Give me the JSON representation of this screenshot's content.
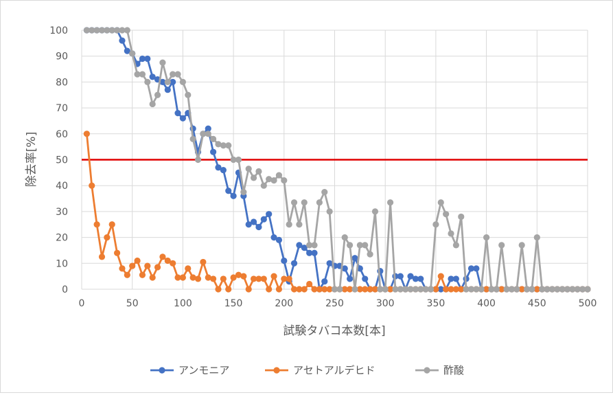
{
  "chart_data": {
    "type": "line",
    "title": "",
    "xlabel": "試験タバコ本数[本]",
    "ylabel": "除去率[%]",
    "xlim": [
      0,
      500
    ],
    "ylim": [
      0,
      100
    ],
    "x_ticks": [
      0,
      50,
      100,
      150,
      200,
      250,
      300,
      350,
      400,
      450,
      500
    ],
    "y_ticks": [
      0,
      10,
      20,
      30,
      40,
      50,
      60,
      70,
      80,
      90,
      100
    ],
    "grid": true,
    "legend_position": "bottom",
    "threshold": {
      "y": 50,
      "color": "#e00000"
    },
    "x": [
      5,
      10,
      15,
      20,
      25,
      30,
      35,
      40,
      45,
      50,
      55,
      60,
      65,
      70,
      75,
      80,
      85,
      90,
      95,
      100,
      105,
      110,
      115,
      120,
      125,
      130,
      135,
      140,
      145,
      150,
      155,
      160,
      165,
      170,
      175,
      180,
      185,
      190,
      195,
      200,
      205,
      210,
      215,
      220,
      225,
      230,
      235,
      240,
      245,
      250,
      255,
      260,
      265,
      270,
      275,
      280,
      285,
      290,
      295,
      300,
      305,
      310,
      315,
      320,
      325,
      330,
      335,
      340,
      345,
      350,
      355,
      360,
      365,
      370,
      375,
      380,
      385,
      390,
      395,
      400,
      405,
      410,
      415,
      420,
      425,
      430,
      435,
      440,
      445,
      450,
      455,
      460,
      465,
      470,
      475,
      480,
      485,
      490,
      495,
      500
    ],
    "series": [
      {
        "name": "アンモニア",
        "color": "#4472c4",
        "values": [
          100,
          100,
          100,
          100,
          100,
          100,
          100,
          96,
          92,
          91,
          87,
          89,
          89,
          82,
          81,
          80,
          77,
          80,
          68,
          66,
          68,
          62,
          53,
          60,
          62,
          53,
          47,
          46,
          38,
          36,
          45,
          36,
          25,
          26,
          24,
          27,
          29,
          20,
          19,
          11,
          3,
          10,
          17,
          16,
          14,
          14,
          0,
          3,
          10,
          9,
          9,
          8,
          4,
          12,
          8,
          4,
          0,
          0,
          7,
          0,
          0,
          5,
          5,
          0,
          5,
          4,
          4,
          0,
          0,
          0,
          0,
          0,
          4,
          4,
          0,
          4,
          8,
          8,
          0,
          0,
          0,
          0,
          0,
          0,
          0,
          0,
          0,
          0,
          0,
          0,
          0,
          0,
          0,
          0,
          0,
          0,
          0,
          0,
          0,
          0
        ]
      },
      {
        "name": "アセトアルデヒド",
        "color": "#ed7d31",
        "values": [
          60,
          40,
          25,
          12.5,
          20,
          25,
          14,
          8,
          5.5,
          9,
          11,
          5.5,
          9,
          4.5,
          8.5,
          12.5,
          11,
          10,
          4.5,
          4.5,
          8,
          4.5,
          4,
          10.5,
          4.5,
          4,
          0,
          4,
          0,
          4.5,
          5.5,
          5,
          0,
          4,
          4,
          4,
          0,
          5,
          0,
          4,
          4,
          0,
          0,
          0,
          2,
          0,
          0,
          0,
          0,
          0,
          0,
          0,
          0,
          0,
          0,
          0,
          0,
          0,
          0,
          0,
          0,
          0,
          0,
          0,
          0,
          0,
          0,
          0,
          0,
          0,
          5,
          0,
          0,
          0,
          0,
          0,
          0,
          0,
          0,
          0,
          0,
          0,
          0,
          0,
          0,
          0,
          0,
          0,
          0,
          0,
          0,
          0,
          0,
          0,
          0,
          0,
          0,
          0,
          0,
          0
        ]
      },
      {
        "name": "酢酸",
        "color": "#a5a5a5",
        "values": [
          100,
          100,
          100,
          100,
          100,
          100,
          100,
          100,
          100,
          91,
          83,
          83,
          80,
          71.5,
          75,
          87.5,
          80,
          83,
          83,
          80,
          75,
          58,
          50,
          60,
          60,
          58,
          56,
          55.5,
          55.5,
          50,
          50,
          37.5,
          46.5,
          43,
          45.5,
          40,
          42.5,
          42,
          44,
          42,
          25,
          33.5,
          25,
          33.5,
          17,
          17,
          33.5,
          37.5,
          30,
          0,
          0,
          20,
          17,
          0,
          17,
          17,
          13.5,
          30,
          0,
          0,
          33.5,
          0,
          0,
          0,
          0,
          0,
          0,
          0,
          0,
          25,
          33.5,
          29,
          21.5,
          17,
          28,
          0,
          0,
          0,
          0,
          20,
          0,
          0,
          17,
          0,
          0,
          0,
          17,
          0,
          0,
          20,
          0,
          0,
          0,
          0,
          0,
          0,
          0,
          0,
          0,
          0
        ]
      }
    ]
  }
}
